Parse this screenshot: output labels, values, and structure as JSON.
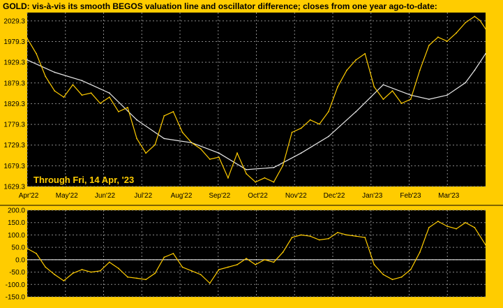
{
  "colors": {
    "frame": "#FFCC00",
    "plot_background": "#000000",
    "price_line": "#FFCC00",
    "valuation_line": "#E8E8E8",
    "grid": "#8A8A8A",
    "zero_line": "#FFFFFF"
  },
  "chart_data": [
    {
      "type": "line",
      "title": "GOLD:  vis-à-vis its smooth BEGOS valuation line and oscillator difference; closes from one year ago-to-date:",
      "annotation": "Through Fri, 14 Apr, '23",
      "x_tick_labels": [
        "Apr'22",
        "May'22",
        "Jun'22",
        "Jul'22",
        "Aug'22",
        "Sep'22",
        "Oct'22",
        "Nov'22",
        "Dec'22",
        "Jan'23",
        "Feb'23",
        "Mar'23"
      ],
      "y_tick_labels": [
        "2029.3",
        "1979.3",
        "1929.3",
        "1879.3",
        "1829.3",
        "1779.3",
        "1729.3",
        "1679.3",
        "1629.3"
      ],
      "ylim": [
        1629.3,
        2049.3
      ],
      "xlim": [
        0,
        251
      ],
      "grid": true,
      "y_axis_side": "left",
      "series": [
        {
          "key": "close",
          "x": [
            0,
            5,
            10,
            15,
            20,
            25,
            30,
            35,
            40,
            45,
            50,
            55,
            60,
            65,
            70,
            75,
            80,
            85,
            90,
            95,
            100,
            105,
            110,
            115,
            120,
            125,
            130,
            135,
            140,
            145,
            150,
            155,
            160,
            165,
            170,
            175,
            180,
            185,
            190,
            195,
            200,
            205,
            210,
            215,
            220,
            225,
            230,
            235,
            240,
            245,
            248,
            251
          ],
          "values": [
            1987,
            1950,
            1895,
            1860,
            1845,
            1875,
            1850,
            1855,
            1830,
            1845,
            1810,
            1820,
            1745,
            1710,
            1730,
            1800,
            1810,
            1760,
            1735,
            1720,
            1695,
            1700,
            1650,
            1710,
            1660,
            1640,
            1650,
            1640,
            1680,
            1760,
            1770,
            1790,
            1780,
            1810,
            1870,
            1910,
            1935,
            1950,
            1870,
            1840,
            1860,
            1830,
            1840,
            1910,
            1970,
            1990,
            1980,
            2000,
            2025,
            2040,
            2030,
            2010
          ]
        },
        {
          "key": "valuation",
          "x": [
            0,
            15,
            30,
            45,
            60,
            75,
            90,
            105,
            120,
            135,
            150,
            165,
            180,
            195,
            210,
            220,
            230,
            240,
            245,
            251
          ],
          "values": [
            1935,
            1905,
            1885,
            1855,
            1790,
            1745,
            1735,
            1710,
            1670,
            1675,
            1710,
            1750,
            1810,
            1875,
            1850,
            1840,
            1850,
            1880,
            1910,
            1950
          ]
        }
      ]
    },
    {
      "type": "line",
      "y_tick_labels": [
        "200.0",
        "150.0",
        "100.0",
        "50.0",
        "0.0",
        "-50.0",
        "-100.0",
        "-150.0"
      ],
      "ylim": [
        -150,
        200
      ],
      "xlim": [
        0,
        251
      ],
      "grid": true,
      "zero_line": true,
      "series": [
        {
          "key": "oscillator",
          "x": [
            0,
            5,
            10,
            15,
            20,
            25,
            30,
            35,
            40,
            45,
            50,
            55,
            60,
            65,
            70,
            75,
            80,
            85,
            90,
            95,
            100,
            105,
            110,
            115,
            120,
            125,
            130,
            135,
            140,
            145,
            150,
            155,
            160,
            165,
            170,
            175,
            180,
            185,
            190,
            195,
            200,
            205,
            210,
            215,
            220,
            225,
            230,
            235,
            240,
            245,
            251
          ],
          "values": [
            45,
            25,
            -30,
            -60,
            -85,
            -55,
            -40,
            -50,
            -45,
            -10,
            -35,
            -70,
            -75,
            -80,
            -55,
            10,
            25,
            -30,
            -45,
            -60,
            -95,
            -40,
            -30,
            -20,
            5,
            -20,
            0,
            -10,
            30,
            90,
            100,
            95,
            80,
            85,
            110,
            100,
            95,
            90,
            -20,
            -60,
            -80,
            -70,
            -40,
            30,
            130,
            155,
            135,
            125,
            150,
            130,
            60
          ]
        }
      ]
    }
  ]
}
